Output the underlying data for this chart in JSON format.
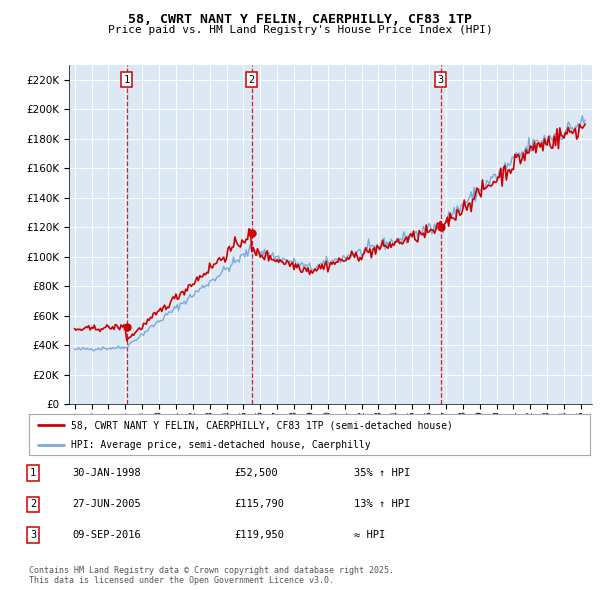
{
  "title": "58, CWRT NANT Y FELIN, CAERPHILLY, CF83 1TP",
  "subtitle": "Price paid vs. HM Land Registry's House Price Index (HPI)",
  "legend_property": "58, CWRT NANT Y FELIN, CAERPHILLY, CF83 1TP (semi-detached house)",
  "legend_hpi": "HPI: Average price, semi-detached house, Caerphilly",
  "footer": "Contains HM Land Registry data © Crown copyright and database right 2025.\nThis data is licensed under the Open Government Licence v3.0.",
  "property_color": "#cc0000",
  "hpi_color": "#7aabdb",
  "bg_color": "#dce9f5",
  "ylim": [
    0,
    230000
  ],
  "yticks": [
    0,
    20000,
    40000,
    60000,
    80000,
    100000,
    120000,
    140000,
    160000,
    180000,
    200000,
    220000
  ],
  "sale_dates": [
    "1998-01-30",
    "2005-06-27",
    "2016-09-09"
  ],
  "sale_prices": [
    52500,
    115790,
    119950
  ],
  "sale_labels": [
    "1",
    "2",
    "3"
  ],
  "sale_annotations": [
    [
      "1",
      "30-JAN-1998",
      "£52,500",
      "35% ↑ HPI"
    ],
    [
      "2",
      "27-JUN-2005",
      "£115,790",
      "13% ↑ HPI"
    ],
    [
      "3",
      "09-SEP-2016",
      "£119,950",
      "≈ HPI"
    ]
  ]
}
